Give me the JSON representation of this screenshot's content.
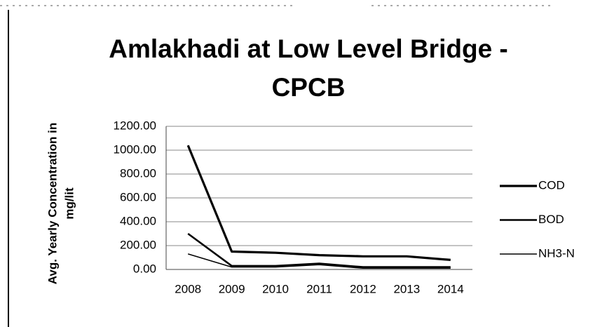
{
  "chart_data": {
    "type": "line",
    "title": [
      "Amlakhadi at Low Level Bridge -",
      "CPCB"
    ],
    "ylabel": [
      "Avg. Yearly Concentration in",
      "mg/lit"
    ],
    "categories": [
      "2008",
      "2009",
      "2010",
      "2011",
      "2012",
      "2013",
      "2014"
    ],
    "series": [
      {
        "name": "COD",
        "color": "#000000",
        "width": 3.2,
        "values": [
          1040,
          150,
          140,
          120,
          110,
          110,
          80
        ]
      },
      {
        "name": "BOD",
        "color": "#000000",
        "width": 2.6,
        "values": [
          300,
          30,
          30,
          50,
          20,
          20,
          20
        ]
      },
      {
        "name": "NH3-N",
        "color": "#000000",
        "width": 1.5,
        "values": [
          130,
          20,
          20,
          40,
          10,
          10,
          10
        ]
      }
    ],
    "ylim": [
      0,
      1200
    ],
    "yticks": [
      {
        "value": 0,
        "label": "0.00"
      },
      {
        "value": 200,
        "label": "200.00"
      },
      {
        "value": 400,
        "label": "400.00"
      },
      {
        "value": 600,
        "label": "600.00"
      },
      {
        "value": 800,
        "label": "800.00"
      },
      {
        "value": 1000,
        "label": "1000.00"
      },
      {
        "value": 1200,
        "label": "1200.00"
      }
    ],
    "grid": true,
    "legend": "right"
  }
}
